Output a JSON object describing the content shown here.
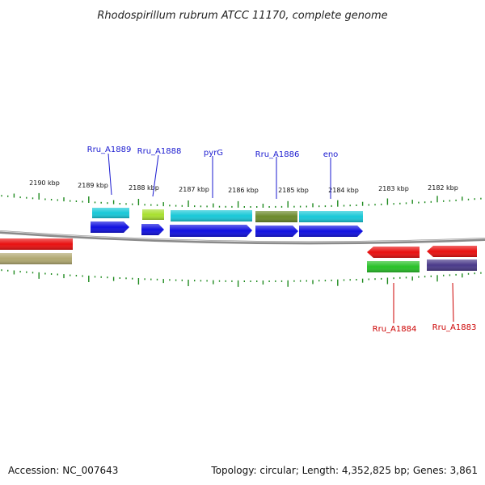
{
  "title": "Rhodospirillum rubrum ATCC 11170, complete genome",
  "accession": "Accession: NC_007643",
  "topology": "Topology: circular; Length: 4,352,825 bp; Genes: 3,861",
  "kbp_labels": [
    "2190 kbp",
    "2189 kbp",
    "2188 kbp",
    "2187 kbp",
    "2186 kbp",
    "2185 kbp",
    "2184 kbp",
    "2183 kbp",
    "2182 kbp"
  ],
  "forward_gene_labels": [
    "Rru_A1889",
    "Rru_A1888",
    "pyrG",
    "Rru_A1886",
    "eno"
  ],
  "reverse_gene_labels": [
    "Rru_A1884",
    "Rru_A1883"
  ],
  "colors": {
    "backbone": "#8a8a8a",
    "tick": "#1e8a1e",
    "cds": "#1010e0",
    "cds_reverse": "#e81010",
    "cyan": "#18c8d8",
    "lime": "#a8e030",
    "olive": "#6b8a2a",
    "green": "#28c028",
    "purple": "#4a3a8a",
    "khaki": "#b0a870"
  }
}
